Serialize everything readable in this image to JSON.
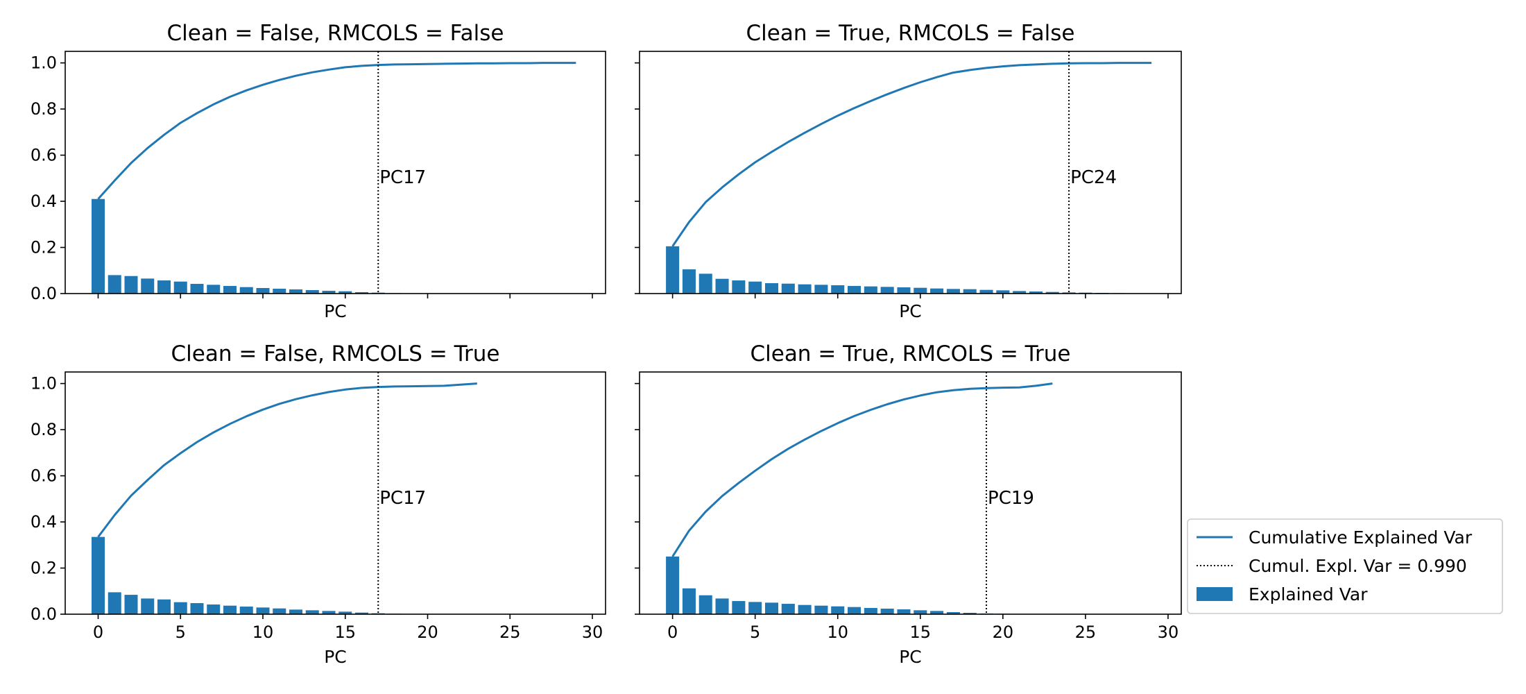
{
  "chart_data": [
    {
      "type": "bar",
      "title": "Clean = False, RMCOLS = False",
      "xlabel": "PC",
      "ylabel": "",
      "xlim": [
        -2,
        30.8
      ],
      "ylim": [
        0,
        1.05
      ],
      "xticks": [
        0,
        5,
        10,
        15,
        20,
        25,
        30
      ],
      "yticks": [
        0.0,
        0.2,
        0.4,
        0.6,
        0.8,
        1.0
      ],
      "x_tick_labels_visible": false,
      "y_tick_labels_visible": true,
      "explained_var": [
        0.41,
        0.08,
        0.076,
        0.065,
        0.057,
        0.052,
        0.042,
        0.038,
        0.033,
        0.028,
        0.024,
        0.021,
        0.018,
        0.015,
        0.012,
        0.01,
        0.006,
        0.004,
        0.002,
        0.001,
        0.0008,
        0.0006,
        0.0005,
        0.0004,
        0.0003,
        0.0003,
        0.0002,
        0.0002,
        0.0001,
        0.0001
      ],
      "cumulative_var": [
        0.41,
        0.49,
        0.566,
        0.631,
        0.688,
        0.74,
        0.782,
        0.82,
        0.853,
        0.881,
        0.905,
        0.926,
        0.944,
        0.959,
        0.971,
        0.981,
        0.987,
        0.991,
        0.993,
        0.994,
        0.995,
        0.996,
        0.997,
        0.998,
        0.998,
        0.999,
        0.999,
        1.0,
        1.0,
        1.0
      ],
      "threshold_pc": 17,
      "threshold_label": "PC17"
    },
    {
      "type": "bar",
      "title": "Clean = True, RMCOLS = False",
      "xlabel": "PC",
      "ylabel": "",
      "xlim": [
        -2,
        30.8
      ],
      "ylim": [
        0,
        1.05
      ],
      "xticks": [
        0,
        5,
        10,
        15,
        20,
        25,
        30
      ],
      "yticks": [
        0.0,
        0.2,
        0.4,
        0.6,
        0.8,
        1.0
      ],
      "x_tick_labels_visible": false,
      "y_tick_labels_visible": false,
      "explained_var": [
        0.205,
        0.105,
        0.086,
        0.064,
        0.057,
        0.052,
        0.045,
        0.043,
        0.04,
        0.038,
        0.036,
        0.033,
        0.031,
        0.029,
        0.027,
        0.025,
        0.022,
        0.02,
        0.019,
        0.016,
        0.014,
        0.011,
        0.009,
        0.007,
        0.005,
        0.004,
        0.003,
        0.002,
        0.001,
        0.001
      ],
      "cumulative_var": [
        0.205,
        0.31,
        0.396,
        0.46,
        0.517,
        0.569,
        0.614,
        0.657,
        0.697,
        0.735,
        0.771,
        0.804,
        0.835,
        0.864,
        0.891,
        0.916,
        0.938,
        0.958,
        0.969,
        0.978,
        0.985,
        0.99,
        0.993,
        0.996,
        0.998,
        0.999,
        0.999,
        1.0,
        1.0,
        1.0
      ],
      "threshold_pc": 24,
      "threshold_label": "PC24"
    },
    {
      "type": "bar",
      "title": "Clean = False, RMCOLS = True",
      "xlabel": "PC",
      "ylabel": "",
      "xlim": [
        -2,
        30.8
      ],
      "ylim": [
        0,
        1.05
      ],
      "xticks": [
        0,
        5,
        10,
        15,
        20,
        25,
        30
      ],
      "yticks": [
        0.0,
        0.2,
        0.4,
        0.6,
        0.8,
        1.0
      ],
      "x_tick_labels_visible": true,
      "y_tick_labels_visible": true,
      "explained_var": [
        0.335,
        0.095,
        0.084,
        0.068,
        0.064,
        0.052,
        0.048,
        0.042,
        0.037,
        0.033,
        0.029,
        0.025,
        0.02,
        0.017,
        0.014,
        0.011,
        0.007,
        0.004,
        0.002,
        0.001,
        0.0008,
        0.0005,
        0.0003,
        0.0002
      ],
      "cumulative_var": [
        0.335,
        0.43,
        0.514,
        0.582,
        0.646,
        0.698,
        0.746,
        0.788,
        0.825,
        0.858,
        0.887,
        0.912,
        0.932,
        0.949,
        0.963,
        0.974,
        0.981,
        0.985,
        0.987,
        0.988,
        0.989,
        0.99,
        0.995,
        1.0
      ],
      "threshold_pc": 17,
      "threshold_label": "PC17"
    },
    {
      "type": "bar",
      "title": "Clean = True, RMCOLS = True",
      "xlabel": "PC",
      "ylabel": "",
      "xlim": [
        -2,
        30.8
      ],
      "ylim": [
        0,
        1.05
      ],
      "xticks": [
        0,
        5,
        10,
        15,
        20,
        25,
        30
      ],
      "yticks": [
        0.0,
        0.2,
        0.4,
        0.6,
        0.8,
        1.0
      ],
      "x_tick_labels_visible": true,
      "y_tick_labels_visible": false,
      "explained_var": [
        0.25,
        0.112,
        0.082,
        0.068,
        0.057,
        0.053,
        0.05,
        0.045,
        0.04,
        0.037,
        0.034,
        0.031,
        0.027,
        0.024,
        0.021,
        0.017,
        0.014,
        0.009,
        0.006,
        0.003,
        0.002,
        0.001,
        0.0005,
        0.0003
      ],
      "cumulative_var": [
        0.25,
        0.362,
        0.444,
        0.512,
        0.569,
        0.622,
        0.672,
        0.717,
        0.757,
        0.794,
        0.828,
        0.859,
        0.886,
        0.91,
        0.931,
        0.948,
        0.962,
        0.971,
        0.977,
        0.98,
        0.982,
        0.983,
        0.99,
        1.0
      ],
      "threshold_pc": 19,
      "threshold_label": "PC19"
    }
  ],
  "legend": {
    "placement": "lower-right",
    "entries": [
      {
        "label": "Cumulative Explained Var",
        "style": "line"
      },
      {
        "label": "Cumul. Expl. Var = 0.990",
        "style": "dotted"
      },
      {
        "label": "Explained Var",
        "style": "patch"
      }
    ]
  },
  "colors": {
    "bar": "#1f77b4",
    "line": "#1f77b4",
    "threshold": "#000000"
  }
}
